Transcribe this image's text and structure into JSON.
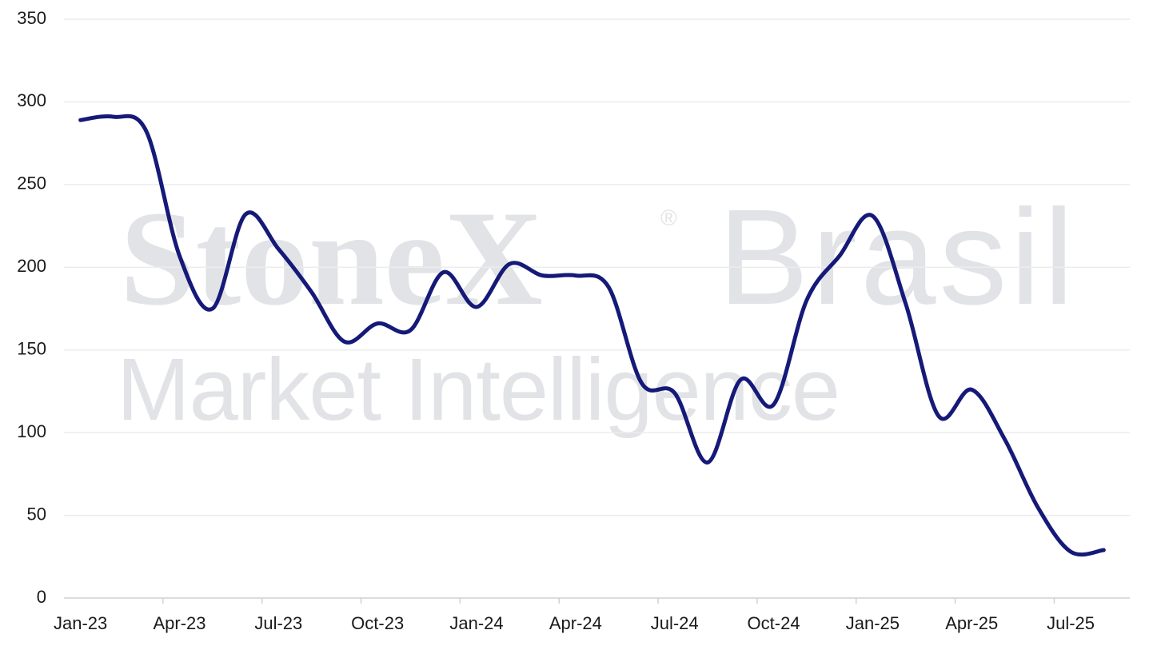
{
  "chart_data": {
    "type": "line",
    "watermark": {
      "line1": "StoneX",
      "mark": "®",
      "brand": "Brasil",
      "line2": "Market Intelligence"
    },
    "categories": [
      "Jan-23",
      null,
      null,
      "Apr-23",
      null,
      null,
      "Jul-23",
      null,
      null,
      "Oct-23",
      null,
      null,
      "Jan-24",
      null,
      null,
      "Apr-24",
      null,
      null,
      "Jul-24",
      null,
      null,
      "Oct-24",
      null,
      null,
      "Jan-25",
      null,
      null,
      "Apr-25",
      null,
      null,
      "Jul-25",
      null
    ],
    "values": [
      289,
      291,
      282,
      207,
      175,
      232,
      211,
      185,
      155,
      166,
      162,
      197,
      176,
      202,
      195,
      195,
      188,
      130,
      124,
      82,
      132,
      117,
      180,
      207,
      231,
      178,
      110,
      126,
      96,
      55,
      28,
      29
    ],
    "color": "#151a78",
    "ylim": [
      0,
      350
    ],
    "yticks": [
      0,
      50,
      100,
      150,
      200,
      250,
      300,
      350
    ],
    "grid": true
  }
}
